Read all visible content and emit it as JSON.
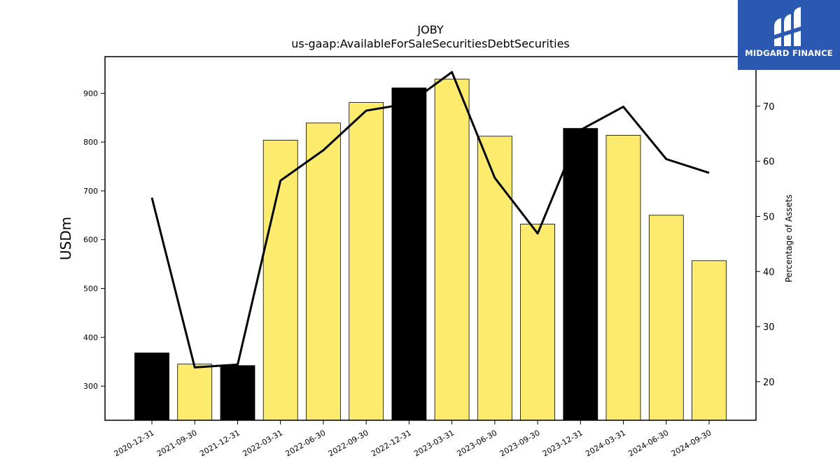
{
  "logo": {
    "text": "MIDGARD FINANCE"
  },
  "chart_data": {
    "type": "bar",
    "title": "JOBY",
    "subtitle": "us-gaap:AvailableForSaleSecuritiesDebtSecurities",
    "ylabel": "USDm",
    "y2label": "Percentage of Assets",
    "categories": [
      "2020-12-31",
      "2021-09-30",
      "2021-12-31",
      "2022-03-31",
      "2022-06-30",
      "2022-09-30",
      "2022-12-31",
      "2023-03-31",
      "2023-06-30",
      "2023-09-30",
      "2023-12-31",
      "2024-03-31",
      "2024-06-30",
      "2024-09-30"
    ],
    "ylim": [
      230,
      975
    ],
    "y_ticks": [
      300,
      400,
      500,
      600,
      700,
      800,
      900
    ],
    "y2lim": [
      13,
      79
    ],
    "y2_ticks": [
      20,
      30,
      40,
      50,
      60,
      70
    ],
    "series": [
      {
        "values": [
          368,
          345,
          342,
          804,
          839,
          881,
          911,
          929,
          812,
          632,
          828,
          814,
          650,
          557
        ],
        "colors": [
          "#000000",
          "#fdeb6e",
          "#000000",
          "#fdeb6e",
          "#fdeb6e",
          "#fdeb6e",
          "#000000",
          "#fdeb6e",
          "#fdeb6e",
          "#fdeb6e",
          "#000000",
          "#fdeb6e",
          "#fdeb6e",
          "#fdeb6e"
        ]
      },
      {
        "axis": "right",
        "type": "line",
        "color": "#000000",
        "values": [
          53.4,
          22.6,
          23.1,
          56.5,
          62.0,
          69.2,
          70.5,
          76.2,
          57.0,
          46.9,
          65.7,
          69.9,
          60.4,
          57.9
        ]
      }
    ],
    "grid": false,
    "legend": "none"
  }
}
